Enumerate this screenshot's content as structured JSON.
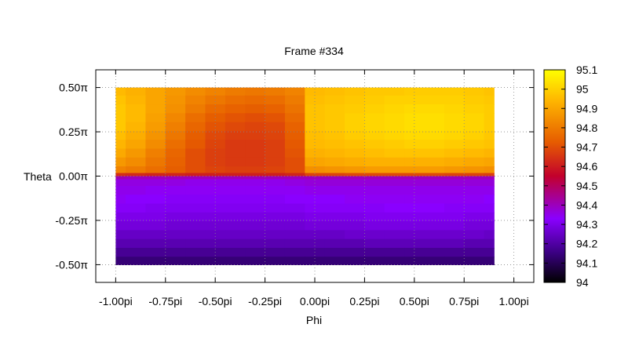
{
  "chart_data": {
    "type": "heatmap",
    "title": "Frame #334",
    "xlabel": "Phi",
    "ylabel": "Theta",
    "xlim": [
      -1.1,
      1.1
    ],
    "ylim": [
      -0.6,
      0.6
    ],
    "x_ticks": [
      {
        "value": -1.0,
        "label": "-1.00pi"
      },
      {
        "value": -0.75,
        "label": "-0.75pi"
      },
      {
        "value": -0.5,
        "label": "-0.50pi"
      },
      {
        "value": -0.25,
        "label": "-0.25pi"
      },
      {
        "value": 0.0,
        "label": "0.00pi"
      },
      {
        "value": 0.25,
        "label": "0.25pi"
      },
      {
        "value": 0.5,
        "label": "0.50pi"
      },
      {
        "value": 0.75,
        "label": "0.75pi"
      },
      {
        "value": 1.0,
        "label": "1.00pi"
      }
    ],
    "y_ticks": [
      {
        "value": 0.5,
        "label": "0.50π"
      },
      {
        "value": 0.25,
        "label": "0.25π"
      },
      {
        "value": 0.0,
        "label": "0.00π"
      },
      {
        "value": -0.25,
        "label": "-0.25π"
      },
      {
        "value": -0.5,
        "label": "-0.50π"
      }
    ],
    "colorbar": {
      "min": 94.0,
      "max": 95.1,
      "ticks": [
        {
          "value": 95.1,
          "label": "95.1"
        },
        {
          "value": 95.0,
          "label": "95"
        },
        {
          "value": 94.9,
          "label": "94.9"
        },
        {
          "value": 94.8,
          "label": "94.8"
        },
        {
          "value": 94.7,
          "label": "94.7"
        },
        {
          "value": 94.6,
          "label": "94.6"
        },
        {
          "value": 94.5,
          "label": "94.5"
        },
        {
          "value": 94.4,
          "label": "94.4"
        },
        {
          "value": 94.3,
          "label": "94.3"
        },
        {
          "value": 94.2,
          "label": "94.2"
        },
        {
          "value": 94.1,
          "label": "94.1"
        },
        {
          "value": 94.0,
          "label": "94"
        }
      ],
      "palette": [
        "#000000",
        "#3b0082",
        "#8a00ff",
        "#c2002c",
        "#e65c00",
        "#ffb800",
        "#ffff00"
      ]
    },
    "grid": true,
    "x_centers": [
      -1.0,
      -0.9,
      -0.8,
      -0.7,
      -0.6,
      -0.5,
      -0.4,
      -0.3,
      -0.2,
      -0.1,
      0.0,
      0.1,
      0.2,
      0.3,
      0.4,
      0.5,
      0.6,
      0.7,
      0.8,
      0.9
    ],
    "y_centers": [
      0.48,
      0.43,
      0.38,
      0.33,
      0.28,
      0.23,
      0.18,
      0.13,
      0.08,
      0.03,
      0.005,
      -0.005,
      -0.03,
      -0.08,
      -0.13,
      -0.18,
      -0.23,
      -0.28,
      -0.33,
      -0.38,
      -0.43,
      -0.48
    ],
    "values": [
      [
        94.95,
        94.93,
        94.9,
        94.87,
        94.84,
        94.82,
        94.8,
        94.79,
        94.8,
        94.82,
        94.95,
        94.96,
        94.97,
        94.98,
        94.98,
        94.99,
        94.99,
        94.99,
        94.98,
        94.97
      ],
      [
        94.97,
        94.94,
        94.9,
        94.86,
        94.82,
        94.79,
        94.77,
        94.76,
        94.77,
        94.8,
        94.96,
        94.97,
        94.98,
        94.99,
        95.0,
        95.0,
        95.0,
        95.0,
        94.99,
        94.98
      ],
      [
        94.98,
        94.95,
        94.9,
        94.85,
        94.8,
        94.76,
        94.74,
        94.73,
        94.74,
        94.78,
        94.97,
        94.98,
        94.99,
        95.0,
        95.01,
        95.02,
        95.02,
        95.01,
        95.0,
        94.99
      ],
      [
        94.98,
        94.95,
        94.89,
        94.83,
        94.77,
        94.73,
        94.71,
        94.7,
        94.71,
        94.76,
        94.97,
        94.98,
        95.0,
        95.01,
        95.02,
        95.03,
        95.03,
        95.02,
        95.01,
        94.99
      ],
      [
        94.98,
        94.94,
        94.88,
        94.81,
        94.75,
        94.71,
        94.69,
        94.68,
        94.69,
        94.74,
        94.97,
        94.98,
        95.0,
        95.01,
        95.02,
        95.03,
        95.03,
        95.02,
        95.01,
        94.99
      ],
      [
        94.96,
        94.92,
        94.86,
        94.79,
        94.73,
        94.69,
        94.67,
        94.67,
        94.68,
        94.73,
        94.96,
        94.97,
        94.99,
        95.0,
        95.01,
        95.02,
        95.02,
        95.01,
        95.0,
        94.98
      ],
      [
        94.94,
        94.9,
        94.84,
        94.77,
        94.72,
        94.68,
        94.66,
        94.66,
        94.67,
        94.72,
        94.95,
        94.96,
        94.97,
        94.98,
        94.99,
        95.0,
        95.0,
        94.99,
        94.98,
        94.97
      ],
      [
        94.91,
        94.87,
        94.81,
        94.75,
        94.7,
        94.67,
        94.66,
        94.66,
        94.67,
        94.71,
        94.93,
        94.94,
        94.95,
        94.96,
        94.97,
        94.97,
        94.97,
        94.96,
        94.95,
        94.94
      ],
      [
        94.87,
        94.84,
        94.79,
        94.74,
        94.7,
        94.67,
        94.66,
        94.66,
        94.67,
        94.7,
        94.9,
        94.91,
        94.92,
        94.93,
        94.93,
        94.93,
        94.93,
        94.92,
        94.91,
        94.9
      ],
      [
        94.82,
        94.8,
        94.77,
        94.73,
        94.7,
        94.68,
        94.67,
        94.67,
        94.68,
        94.7,
        94.85,
        94.86,
        94.87,
        94.88,
        94.88,
        94.88,
        94.88,
        94.87,
        94.86,
        94.85
      ],
      [
        94.64,
        94.63,
        94.62,
        94.62,
        94.61,
        94.61,
        94.61,
        94.61,
        94.61,
        94.62,
        94.68,
        94.68,
        94.69,
        94.69,
        94.69,
        94.69,
        94.69,
        94.68,
        94.68,
        94.67
      ],
      [
        94.41,
        94.4,
        94.4,
        94.4,
        94.4,
        94.4,
        94.4,
        94.4,
        94.4,
        94.4,
        94.4,
        94.4,
        94.4,
        94.4,
        94.4,
        94.4,
        94.4,
        94.4,
        94.4,
        94.4
      ],
      [
        94.36,
        94.36,
        94.36,
        94.36,
        94.35,
        94.35,
        94.35,
        94.35,
        94.35,
        94.36,
        94.37,
        94.37,
        94.37,
        94.37,
        94.37,
        94.37,
        94.37,
        94.37,
        94.37,
        94.37
      ],
      [
        94.35,
        94.35,
        94.34,
        94.34,
        94.34,
        94.34,
        94.34,
        94.34,
        94.34,
        94.34,
        94.35,
        94.35,
        94.35,
        94.35,
        94.35,
        94.35,
        94.35,
        94.35,
        94.35,
        94.35
      ],
      [
        94.34,
        94.33,
        94.33,
        94.32,
        94.32,
        94.32,
        94.32,
        94.32,
        94.32,
        94.33,
        94.33,
        94.33,
        94.34,
        94.34,
        94.34,
        94.34,
        94.34,
        94.34,
        94.34,
        94.33
      ],
      [
        94.32,
        94.32,
        94.31,
        94.31,
        94.31,
        94.31,
        94.31,
        94.31,
        94.31,
        94.31,
        94.32,
        94.32,
        94.32,
        94.32,
        94.33,
        94.33,
        94.33,
        94.32,
        94.32,
        94.32
      ],
      [
        94.3,
        94.3,
        94.3,
        94.29,
        94.29,
        94.29,
        94.29,
        94.29,
        94.29,
        94.29,
        94.3,
        94.3,
        94.3,
        94.31,
        94.31,
        94.31,
        94.31,
        94.31,
        94.3,
        94.3
      ],
      [
        94.28,
        94.28,
        94.28,
        94.27,
        94.27,
        94.27,
        94.27,
        94.27,
        94.27,
        94.27,
        94.28,
        94.28,
        94.28,
        94.29,
        94.29,
        94.29,
        94.29,
        94.29,
        94.28,
        94.28
      ],
      [
        94.25,
        94.25,
        94.25,
        94.25,
        94.25,
        94.25,
        94.25,
        94.25,
        94.25,
        94.25,
        94.25,
        94.25,
        94.26,
        94.26,
        94.26,
        94.26,
        94.26,
        94.26,
        94.26,
        94.25
      ],
      [
        94.22,
        94.22,
        94.22,
        94.22,
        94.22,
        94.22,
        94.22,
        94.22,
        94.22,
        94.22,
        94.22,
        94.22,
        94.22,
        94.23,
        94.23,
        94.23,
        94.23,
        94.23,
        94.22,
        94.22
      ],
      [
        94.18,
        94.18,
        94.18,
        94.18,
        94.18,
        94.18,
        94.18,
        94.18,
        94.18,
        94.18,
        94.18,
        94.18,
        94.18,
        94.18,
        94.18,
        94.18,
        94.18,
        94.18,
        94.18,
        94.18
      ],
      [
        94.14,
        94.14,
        94.14,
        94.14,
        94.14,
        94.14,
        94.14,
        94.14,
        94.14,
        94.14,
        94.14,
        94.14,
        94.14,
        94.14,
        94.14,
        94.14,
        94.14,
        94.14,
        94.14,
        94.14
      ]
    ]
  }
}
